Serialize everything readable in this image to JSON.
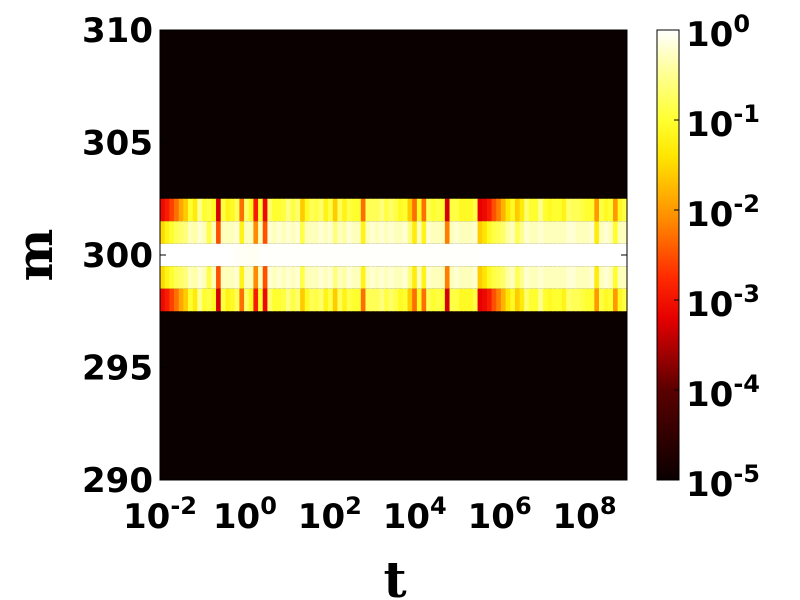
{
  "chart_data": {
    "type": "heatmap",
    "xlabel": "t",
    "ylabel": "m",
    "x_scale": "log",
    "xlim": [
      0.01,
      1000000000
    ],
    "ylim": [
      290,
      310
    ],
    "x_ticks": [
      {
        "base": "10",
        "exp": "-2"
      },
      {
        "base": "10",
        "exp": "0"
      },
      {
        "base": "10",
        "exp": "2"
      },
      {
        "base": "10",
        "exp": "4"
      },
      {
        "base": "10",
        "exp": "6"
      },
      {
        "base": "10",
        "exp": "8"
      }
    ],
    "y_ticks": [
      "290",
      "295",
      "300",
      "305",
      "310"
    ],
    "colorbar": {
      "scale": "log",
      "range": [
        1e-05,
        1
      ],
      "colormap": "hot",
      "ticks": [
        {
          "base": "10",
          "exp": "0"
        },
        {
          "base": "10",
          "exp": "-1"
        },
        {
          "base": "10",
          "exp": "-2"
        },
        {
          "base": "10",
          "exp": "-3"
        },
        {
          "base": "10",
          "exp": "-4"
        },
        {
          "base": "10",
          "exp": "-5"
        }
      ]
    },
    "rows_m": [
      302,
      301,
      300,
      299,
      298
    ],
    "log10_values": [
      [
        -3.1,
        -2.9,
        -2.6,
        -2.3,
        -1.9,
        -1.6,
        -1.0,
        -1.3,
        -0.5,
        -1.0,
        -0.9,
        -1.1,
        -3.3,
        -0.9,
        -1.2,
        -1.1,
        -0.8,
        -2.3,
        -0.7,
        -1.1,
        -2.9,
        -1.0,
        -3.1,
        -0.7,
        -1.0,
        -1.0,
        -0.9,
        -0.6,
        -0.9,
        -0.7,
        -1.6,
        -1.1,
        -0.8,
        -0.9,
        -0.7,
        -1.2,
        -0.9,
        -1.6,
        -0.8,
        -1.2,
        -0.9,
        -1.0,
        -1.0,
        -2.3,
        -0.8,
        -0.8,
        -0.8,
        -0.6,
        -0.9,
        -0.7,
        -0.9,
        -1.1,
        -1.0,
        -1.6,
        -2.3,
        -1.1,
        -2.3,
        -0.8,
        -1.0,
        -0.9,
        -1.0,
        -3.3,
        -0.9,
        -0.9,
        -1.1,
        -1.1,
        -1.1,
        -0.9,
        -3.2,
        -3.1,
        -2.9,
        -2.5,
        -2.2,
        -1.8,
        -1.4,
        -1.1,
        -1.6,
        -1.3,
        -0.7,
        -1.0,
        -1.0,
        -0.5,
        -1.0,
        -1.1,
        -1.0,
        -1.0,
        -1.2,
        -0.7,
        -0.8,
        -0.8,
        -0.9,
        -1.0,
        -1.0,
        -2.0,
        -0.9,
        -1.1,
        -1.0,
        -2.0,
        -1.1,
        -0.9
      ],
      [
        -1.5,
        -1.2,
        -1.0,
        -0.8,
        -0.7,
        -0.6,
        -0.3,
        -0.4,
        -0.2,
        -0.3,
        -0.9,
        -0.3,
        -2.5,
        -0.3,
        -0.3,
        -0.3,
        -0.2,
        -1.2,
        -0.3,
        -0.3,
        -2.1,
        -0.3,
        -2.5,
        -0.2,
        -0.3,
        -0.2,
        -0.3,
        -0.2,
        -0.3,
        -0.2,
        -0.9,
        -0.3,
        -0.3,
        -0.3,
        -0.2,
        -0.3,
        -0.2,
        -0.6,
        -0.3,
        -0.4,
        -0.2,
        -0.3,
        -0.3,
        -1.2,
        -0.3,
        -0.2,
        -0.3,
        -0.2,
        -0.3,
        -0.2,
        -0.3,
        -0.3,
        -0.2,
        -0.6,
        -1.3,
        -0.3,
        -1.2,
        -0.2,
        -0.3,
        -0.3,
        -0.3,
        -2.2,
        -0.3,
        -0.2,
        -0.3,
        -0.3,
        -0.3,
        -0.2,
        -1.6,
        -1.4,
        -1.1,
        -0.9,
        -0.8,
        -0.7,
        -0.4,
        -0.3,
        -0.8,
        -0.5,
        -0.2,
        -0.3,
        -0.3,
        -0.2,
        -0.3,
        -0.3,
        -0.3,
        -0.3,
        -0.3,
        -0.2,
        -0.2,
        -0.3,
        -0.3,
        -0.3,
        -0.2,
        -1.3,
        -0.3,
        -0.2,
        -0.3,
        -1.0,
        -0.3,
        -0.3
      ],
      [
        0,
        0,
        0,
        0,
        0,
        0,
        0,
        0,
        0,
        0,
        0,
        0,
        0,
        0,
        0,
        -0.02,
        -0.03,
        -0.03,
        -0.05,
        -0.05,
        -0.05,
        -0.02,
        -0.02,
        -0.02,
        -0.02,
        -0.02,
        -0.02,
        -0.02,
        -0.02,
        -0.02,
        -0.02,
        -0.02,
        -0.02,
        -0.02,
        -0.02,
        -0.02,
        -0.02,
        -0.02,
        -0.02,
        -0.02,
        -0.02,
        -0.02,
        -0.02,
        -0.02,
        -0.02,
        -0.02,
        -0.02,
        -0.02,
        -0.02,
        -0.02,
        -0.02,
        -0.02,
        -0.02,
        -0.02,
        -0.02,
        -0.02,
        -0.02,
        -0.02,
        -0.02,
        -0.02,
        -0.02,
        -0.02,
        -0.02,
        -0.02,
        -0.02,
        -0.02,
        -0.02,
        -0.02,
        0,
        0,
        0,
        0,
        0,
        0,
        0,
        0,
        0,
        0,
        0,
        0,
        0,
        0,
        0,
        0,
        0,
        0,
        0,
        0,
        0,
        0,
        0,
        0,
        0,
        0,
        0,
        0,
        0,
        0,
        0,
        0
      ],
      [
        -1.5,
        -1.2,
        -1.0,
        -0.8,
        -0.7,
        -0.6,
        -0.3,
        -0.4,
        -0.2,
        -0.3,
        -0.9,
        -0.3,
        -2.5,
        -0.3,
        -0.3,
        -0.3,
        -0.2,
        -1.2,
        -0.3,
        -0.3,
        -2.1,
        -0.3,
        -2.5,
        -0.2,
        -0.3,
        -0.2,
        -0.3,
        -0.2,
        -0.3,
        -0.2,
        -0.9,
        -0.3,
        -0.3,
        -0.3,
        -0.2,
        -0.3,
        -0.2,
        -0.6,
        -0.3,
        -0.4,
        -0.2,
        -0.3,
        -0.3,
        -1.2,
        -0.3,
        -0.2,
        -0.3,
        -0.2,
        -0.3,
        -0.2,
        -0.3,
        -0.3,
        -0.2,
        -0.6,
        -1.3,
        -0.3,
        -1.2,
        -0.2,
        -0.3,
        -0.3,
        -0.3,
        -2.2,
        -0.3,
        -0.2,
        -0.3,
        -0.3,
        -0.3,
        -0.2,
        -1.6,
        -1.4,
        -1.1,
        -0.9,
        -0.8,
        -0.7,
        -0.4,
        -0.3,
        -0.8,
        -0.5,
        -0.2,
        -0.3,
        -0.3,
        -0.2,
        -0.3,
        -0.3,
        -0.3,
        -0.3,
        -0.3,
        -0.2,
        -0.2,
        -0.3,
        -0.3,
        -0.3,
        -0.2,
        -1.3,
        -0.3,
        -0.2,
        -0.3,
        -1.0,
        -0.3,
        -0.3
      ],
      [
        -3.1,
        -2.9,
        -2.6,
        -2.3,
        -1.9,
        -1.6,
        -1.0,
        -1.3,
        -0.5,
        -1.0,
        -0.9,
        -1.1,
        -3.3,
        -0.9,
        -1.2,
        -1.1,
        -0.8,
        -2.3,
        -0.7,
        -1.1,
        -2.9,
        -1.0,
        -3.1,
        -0.7,
        -1.0,
        -1.0,
        -0.9,
        -0.6,
        -0.9,
        -0.7,
        -1.6,
        -1.1,
        -0.8,
        -0.9,
        -0.7,
        -1.2,
        -0.9,
        -1.6,
        -0.8,
        -1.2,
        -0.9,
        -1.0,
        -1.0,
        -2.3,
        -0.8,
        -0.8,
        -0.8,
        -0.6,
        -0.9,
        -0.7,
        -0.9,
        -1.1,
        -1.0,
        -1.6,
        -2.3,
        -1.1,
        -2.3,
        -0.8,
        -1.0,
        -0.9,
        -1.0,
        -3.3,
        -0.9,
        -0.9,
        -1.1,
        -1.1,
        -1.1,
        -0.9,
        -3.2,
        -3.1,
        -2.9,
        -2.5,
        -2.2,
        -1.8,
        -1.4,
        -1.1,
        -1.6,
        -1.3,
        -0.7,
        -1.0,
        -1.0,
        -0.5,
        -1.0,
        -1.1,
        -1.0,
        -1.0,
        -1.2,
        -0.7,
        -0.8,
        -0.8,
        -0.9,
        -1.0,
        -1.0,
        -2.0,
        -0.9,
        -1.1,
        -1.0,
        -2.0,
        -1.1,
        -0.9
      ]
    ],
    "background_log10": -5
  }
}
